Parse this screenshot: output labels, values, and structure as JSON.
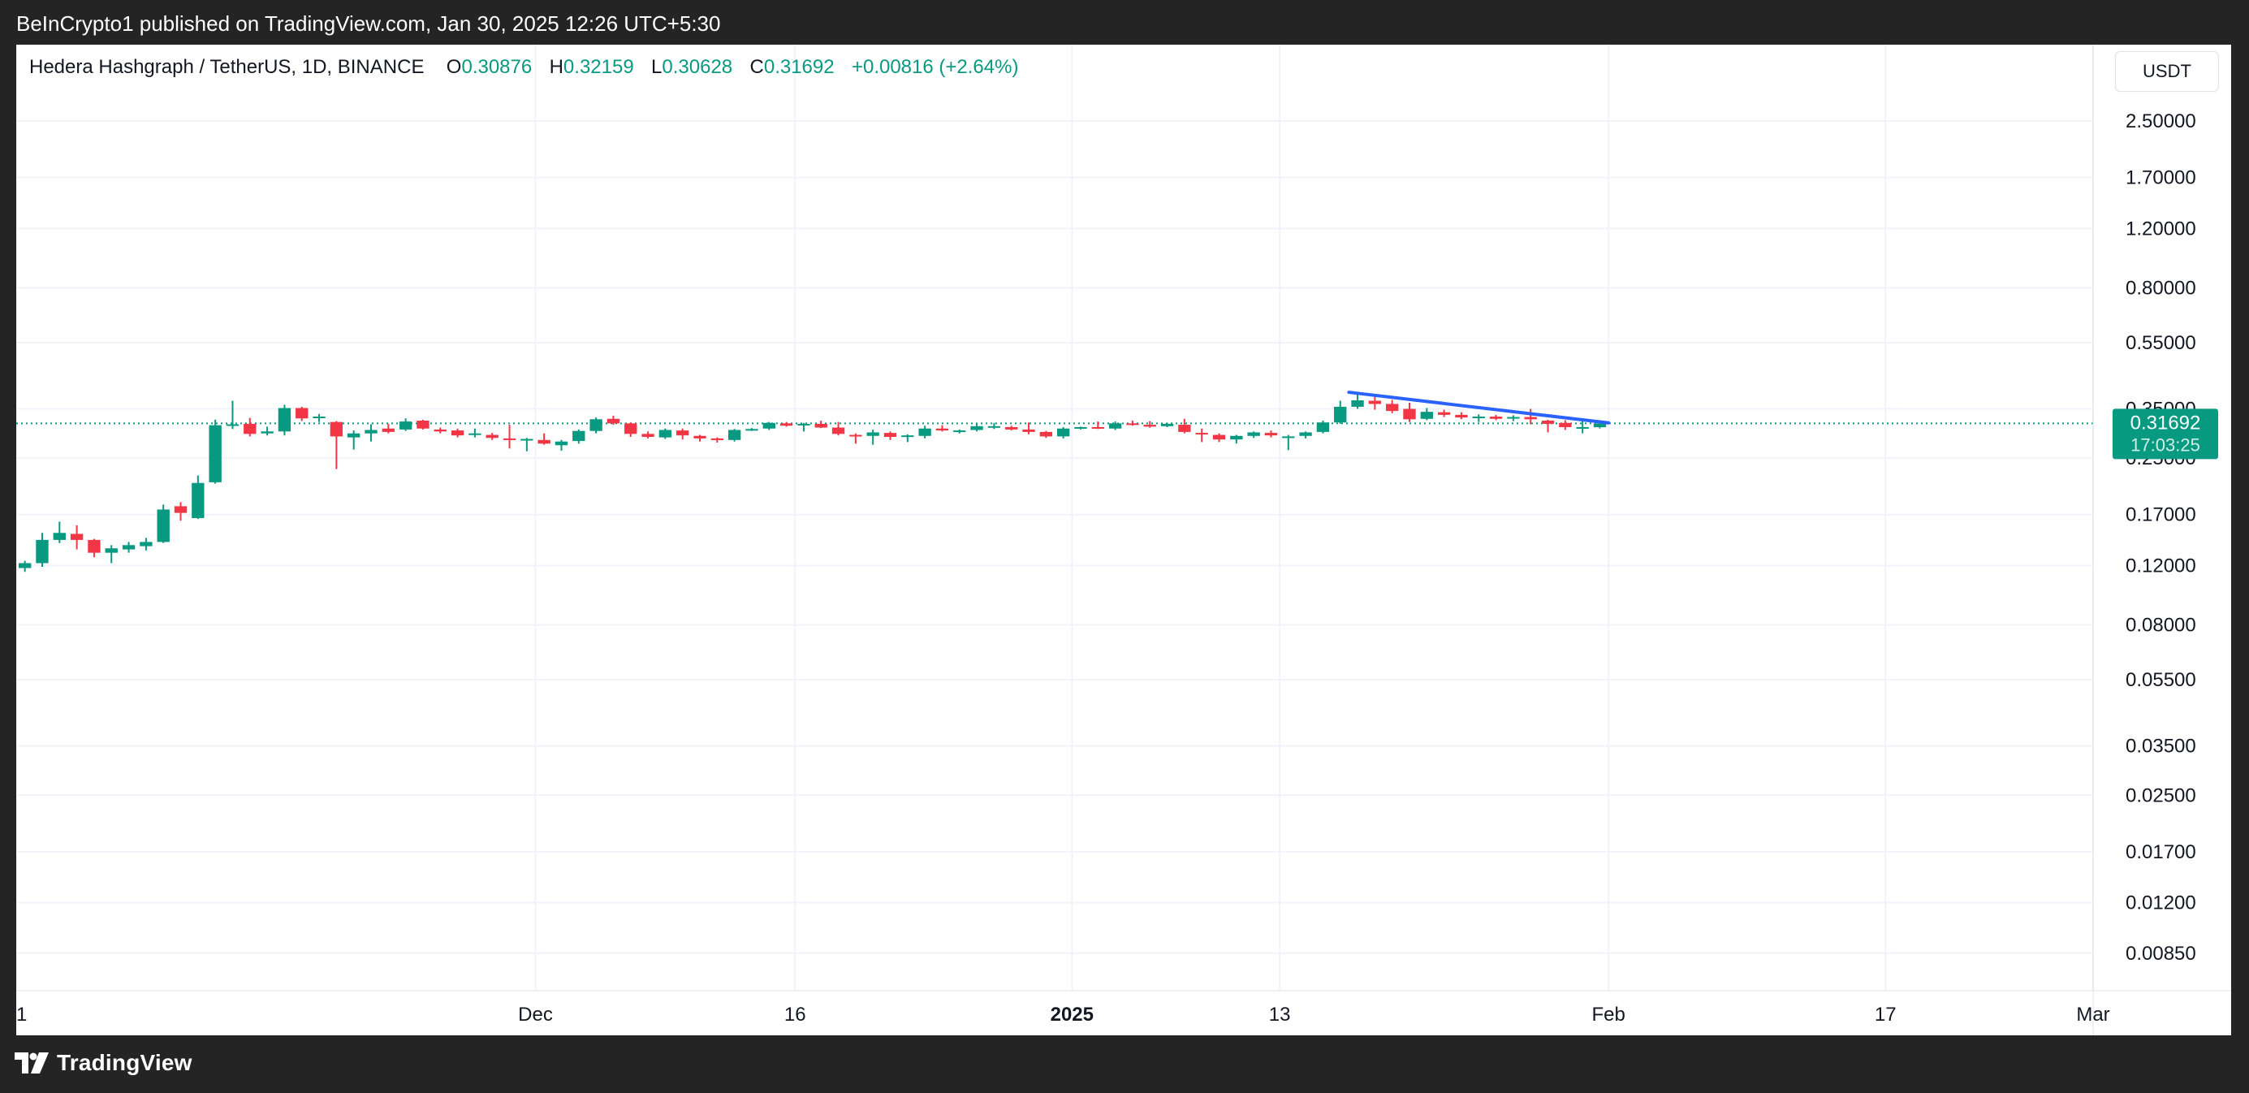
{
  "header": {
    "publish_line": "BeInCrypto1 published on TradingView.com, Jan 30, 2025 12:26 UTC+5:30"
  },
  "legend": {
    "symbol": "Hedera Hashgraph / TetherUS, 1D, BINANCE",
    "open_label": "O",
    "open": "0.30876",
    "high_label": "H",
    "high": "0.32159",
    "low_label": "L",
    "low": "0.30628",
    "close_label": "C",
    "close": "0.31692",
    "change": "+0.00816 (+2.64%)"
  },
  "price_axis": {
    "currency": "USDT",
    "current_price": "0.31692",
    "countdown": "17:03:25"
  },
  "footer": {
    "brand": "TradingView"
  },
  "colors": {
    "up": "#089981",
    "down": "#f23645",
    "trendline": "#2962ff",
    "grid": "#f0f3fa",
    "text": "#131722"
  },
  "icons": [
    "tradingview-logo-icon"
  ],
  "chart_data": {
    "type": "candlestick",
    "title": "Hedera Hashgraph / TetherUS, 1D, BINANCE",
    "y_scale": "log",
    "ylim": [
      0.0068,
      3.3
    ],
    "y_ticks": [
      "2.50000",
      "1.70000",
      "1.20000",
      "0.80000",
      "0.55000",
      "0.35000",
      "0.25000",
      "0.17000",
      "0.12000",
      "0.08000",
      "0.05500",
      "0.03500",
      "0.02500",
      "0.01700",
      "0.01200",
      "0.00850"
    ],
    "x_ticks": [
      {
        "date": "2024-11-01",
        "label": "1",
        "bold": false
      },
      {
        "date": "2024-12-01",
        "label": "Dec",
        "bold": false
      },
      {
        "date": "2024-12-16",
        "label": "16",
        "bold": false
      },
      {
        "date": "2025-01-01",
        "label": "2025",
        "bold": true
      },
      {
        "date": "2025-01-13",
        "label": "13",
        "bold": false
      },
      {
        "date": "2025-02-01",
        "label": "Feb",
        "bold": false
      },
      {
        "date": "2025-02-17",
        "label": "17",
        "bold": false
      },
      {
        "date": "2025-03-01",
        "label": "Mar",
        "bold": false
      }
    ],
    "x_range": [
      "2024-11-01",
      "2025-03-01"
    ],
    "candles": [
      {
        "date": "2024-11-01",
        "o": 0.118,
        "h": 0.124,
        "l": 0.115,
        "c": 0.122
      },
      {
        "date": "2024-11-02",
        "o": 0.122,
        "h": 0.15,
        "l": 0.119,
        "c": 0.143
      },
      {
        "date": "2024-11-03",
        "o": 0.143,
        "h": 0.162,
        "l": 0.14,
        "c": 0.15
      },
      {
        "date": "2024-11-04",
        "o": 0.149,
        "h": 0.158,
        "l": 0.134,
        "c": 0.143
      },
      {
        "date": "2024-11-05",
        "o": 0.143,
        "h": 0.144,
        "l": 0.127,
        "c": 0.131
      },
      {
        "date": "2024-11-06",
        "o": 0.131,
        "h": 0.138,
        "l": 0.122,
        "c": 0.135
      },
      {
        "date": "2024-11-07",
        "o": 0.134,
        "h": 0.141,
        "l": 0.131,
        "c": 0.138
      },
      {
        "date": "2024-11-08",
        "o": 0.137,
        "h": 0.145,
        "l": 0.133,
        "c": 0.141
      },
      {
        "date": "2024-11-09",
        "o": 0.141,
        "h": 0.182,
        "l": 0.14,
        "c": 0.176
      },
      {
        "date": "2024-11-10",
        "o": 0.18,
        "h": 0.185,
        "l": 0.163,
        "c": 0.172
      },
      {
        "date": "2024-11-11",
        "o": 0.166,
        "h": 0.222,
        "l": 0.165,
        "c": 0.211
      },
      {
        "date": "2024-11-12",
        "o": 0.212,
        "h": 0.325,
        "l": 0.21,
        "c": 0.313
      },
      {
        "date": "2024-11-13",
        "o": 0.313,
        "h": 0.37,
        "l": 0.305,
        "c": 0.315
      },
      {
        "date": "2024-11-14",
        "o": 0.316,
        "h": 0.329,
        "l": 0.29,
        "c": 0.295
      },
      {
        "date": "2024-11-15",
        "o": 0.296,
        "h": 0.31,
        "l": 0.292,
        "c": 0.3
      },
      {
        "date": "2024-11-16",
        "o": 0.3,
        "h": 0.36,
        "l": 0.292,
        "c": 0.352
      },
      {
        "date": "2024-11-17",
        "o": 0.352,
        "h": 0.355,
        "l": 0.322,
        "c": 0.328
      },
      {
        "date": "2024-11-18",
        "o": 0.329,
        "h": 0.338,
        "l": 0.32,
        "c": 0.332
      },
      {
        "date": "2024-11-19",
        "o": 0.32,
        "h": 0.322,
        "l": 0.232,
        "c": 0.29
      },
      {
        "date": "2024-11-20",
        "o": 0.288,
        "h": 0.302,
        "l": 0.265,
        "c": 0.296
      },
      {
        "date": "2024-11-21",
        "o": 0.296,
        "h": 0.315,
        "l": 0.28,
        "c": 0.303
      },
      {
        "date": "2024-11-22",
        "o": 0.306,
        "h": 0.316,
        "l": 0.296,
        "c": 0.299
      },
      {
        "date": "2024-11-23",
        "o": 0.304,
        "h": 0.328,
        "l": 0.301,
        "c": 0.321
      },
      {
        "date": "2024-11-24",
        "o": 0.323,
        "h": 0.325,
        "l": 0.304,
        "c": 0.306
      },
      {
        "date": "2024-11-25",
        "o": 0.304,
        "h": 0.308,
        "l": 0.296,
        "c": 0.3
      },
      {
        "date": "2024-11-26",
        "o": 0.302,
        "h": 0.306,
        "l": 0.288,
        "c": 0.292
      },
      {
        "date": "2024-11-27",
        "o": 0.293,
        "h": 0.306,
        "l": 0.288,
        "c": 0.296
      },
      {
        "date": "2024-11-28",
        "o": 0.293,
        "h": 0.297,
        "l": 0.283,
        "c": 0.287
      },
      {
        "date": "2024-11-29",
        "o": 0.286,
        "h": 0.314,
        "l": 0.267,
        "c": 0.283
      },
      {
        "date": "2024-11-30",
        "o": 0.283,
        "h": 0.287,
        "l": 0.262,
        "c": 0.285
      },
      {
        "date": "2024-12-01",
        "o": 0.283,
        "h": 0.296,
        "l": 0.274,
        "c": 0.276
      },
      {
        "date": "2024-12-02",
        "o": 0.273,
        "h": 0.283,
        "l": 0.263,
        "c": 0.28
      },
      {
        "date": "2024-12-03",
        "o": 0.281,
        "h": 0.304,
        "l": 0.276,
        "c": 0.301
      },
      {
        "date": "2024-12-04",
        "o": 0.301,
        "h": 0.33,
        "l": 0.296,
        "c": 0.326
      },
      {
        "date": "2024-12-05",
        "o": 0.327,
        "h": 0.334,
        "l": 0.314,
        "c": 0.317
      },
      {
        "date": "2024-12-06",
        "o": 0.317,
        "h": 0.319,
        "l": 0.289,
        "c": 0.295
      },
      {
        "date": "2024-12-07",
        "o": 0.295,
        "h": 0.3,
        "l": 0.286,
        "c": 0.289
      },
      {
        "date": "2024-12-08",
        "o": 0.288,
        "h": 0.306,
        "l": 0.285,
        "c": 0.303
      },
      {
        "date": "2024-12-09",
        "o": 0.302,
        "h": 0.306,
        "l": 0.284,
        "c": 0.292
      },
      {
        "date": "2024-12-10",
        "o": 0.291,
        "h": 0.293,
        "l": 0.28,
        "c": 0.286
      },
      {
        "date": "2024-12-11",
        "o": 0.286,
        "h": 0.288,
        "l": 0.278,
        "c": 0.283
      },
      {
        "date": "2024-12-12",
        "o": 0.283,
        "h": 0.305,
        "l": 0.28,
        "c": 0.303
      },
      {
        "date": "2024-12-13",
        "o": 0.305,
        "h": 0.307,
        "l": 0.301,
        "c": 0.305
      },
      {
        "date": "2024-12-14",
        "o": 0.306,
        "h": 0.32,
        "l": 0.303,
        "c": 0.318
      },
      {
        "date": "2024-12-15",
        "o": 0.317,
        "h": 0.32,
        "l": 0.31,
        "c": 0.312
      },
      {
        "date": "2024-12-16",
        "o": 0.313,
        "h": 0.318,
        "l": 0.3,
        "c": 0.316
      },
      {
        "date": "2024-12-17",
        "o": 0.316,
        "h": 0.323,
        "l": 0.307,
        "c": 0.308
      },
      {
        "date": "2024-12-18",
        "o": 0.308,
        "h": 0.32,
        "l": 0.292,
        "c": 0.295
      },
      {
        "date": "2024-12-19",
        "o": 0.293,
        "h": 0.296,
        "l": 0.276,
        "c": 0.291
      },
      {
        "date": "2024-12-20",
        "o": 0.291,
        "h": 0.304,
        "l": 0.274,
        "c": 0.298
      },
      {
        "date": "2024-12-21",
        "o": 0.297,
        "h": 0.3,
        "l": 0.283,
        "c": 0.289
      },
      {
        "date": "2024-12-22",
        "o": 0.289,
        "h": 0.294,
        "l": 0.279,
        "c": 0.292
      },
      {
        "date": "2024-12-23",
        "o": 0.291,
        "h": 0.312,
        "l": 0.286,
        "c": 0.306
      },
      {
        "date": "2024-12-24",
        "o": 0.306,
        "h": 0.313,
        "l": 0.3,
        "c": 0.302
      },
      {
        "date": "2024-12-25",
        "o": 0.3,
        "h": 0.304,
        "l": 0.296,
        "c": 0.302
      },
      {
        "date": "2024-12-26",
        "o": 0.303,
        "h": 0.318,
        "l": 0.3,
        "c": 0.311
      },
      {
        "date": "2024-12-27",
        "o": 0.311,
        "h": 0.318,
        "l": 0.305,
        "c": 0.311
      },
      {
        "date": "2024-12-28",
        "o": 0.309,
        "h": 0.312,
        "l": 0.302,
        "c": 0.304
      },
      {
        "date": "2024-12-29",
        "o": 0.304,
        "h": 0.319,
        "l": 0.294,
        "c": 0.299
      },
      {
        "date": "2024-12-30",
        "o": 0.299,
        "h": 0.301,
        "l": 0.287,
        "c": 0.29
      },
      {
        "date": "2024-12-31",
        "o": 0.29,
        "h": 0.309,
        "l": 0.286,
        "c": 0.306
      },
      {
        "date": "2025-01-01",
        "o": 0.306,
        "h": 0.31,
        "l": 0.304,
        "c": 0.309
      },
      {
        "date": "2025-01-02",
        "o": 0.309,
        "h": 0.321,
        "l": 0.305,
        "c": 0.307
      },
      {
        "date": "2025-01-03",
        "o": 0.306,
        "h": 0.321,
        "l": 0.303,
        "c": 0.317
      },
      {
        "date": "2025-01-04",
        "o": 0.317,
        "h": 0.323,
        "l": 0.312,
        "c": 0.314
      },
      {
        "date": "2025-01-05",
        "o": 0.314,
        "h": 0.322,
        "l": 0.308,
        "c": 0.31
      },
      {
        "date": "2025-01-06",
        "o": 0.311,
        "h": 0.318,
        "l": 0.309,
        "c": 0.316
      },
      {
        "date": "2025-01-07",
        "o": 0.314,
        "h": 0.327,
        "l": 0.296,
        "c": 0.299
      },
      {
        "date": "2025-01-08",
        "o": 0.297,
        "h": 0.306,
        "l": 0.279,
        "c": 0.295
      },
      {
        "date": "2025-01-09",
        "o": 0.293,
        "h": 0.296,
        "l": 0.279,
        "c": 0.284
      },
      {
        "date": "2025-01-10",
        "o": 0.284,
        "h": 0.293,
        "l": 0.276,
        "c": 0.291
      },
      {
        "date": "2025-01-11",
        "o": 0.291,
        "h": 0.3,
        "l": 0.287,
        "c": 0.298
      },
      {
        "date": "2025-01-12",
        "o": 0.297,
        "h": 0.302,
        "l": 0.288,
        "c": 0.292
      },
      {
        "date": "2025-01-13",
        "o": 0.29,
        "h": 0.293,
        "l": 0.264,
        "c": 0.29
      },
      {
        "date": "2025-01-14",
        "o": 0.291,
        "h": 0.3,
        "l": 0.286,
        "c": 0.298
      },
      {
        "date": "2025-01-15",
        "o": 0.299,
        "h": 0.323,
        "l": 0.296,
        "c": 0.319
      },
      {
        "date": "2025-01-16",
        "o": 0.319,
        "h": 0.37,
        "l": 0.316,
        "c": 0.355
      },
      {
        "date": "2025-01-17",
        "o": 0.355,
        "h": 0.39,
        "l": 0.35,
        "c": 0.371
      },
      {
        "date": "2025-01-18",
        "o": 0.37,
        "h": 0.38,
        "l": 0.348,
        "c": 0.362
      },
      {
        "date": "2025-01-19",
        "o": 0.362,
        "h": 0.372,
        "l": 0.34,
        "c": 0.345
      },
      {
        "date": "2025-01-20",
        "o": 0.35,
        "h": 0.365,
        "l": 0.32,
        "c": 0.326
      },
      {
        "date": "2025-01-21",
        "o": 0.327,
        "h": 0.352,
        "l": 0.324,
        "c": 0.343
      },
      {
        "date": "2025-01-22",
        "o": 0.342,
        "h": 0.348,
        "l": 0.331,
        "c": 0.336
      },
      {
        "date": "2025-01-23",
        "o": 0.336,
        "h": 0.342,
        "l": 0.326,
        "c": 0.33
      },
      {
        "date": "2025-01-24",
        "o": 0.331,
        "h": 0.337,
        "l": 0.32,
        "c": 0.332
      },
      {
        "date": "2025-01-25",
        "o": 0.332,
        "h": 0.336,
        "l": 0.324,
        "c": 0.327
      },
      {
        "date": "2025-01-26",
        "o": 0.328,
        "h": 0.335,
        "l": 0.322,
        "c": 0.331
      },
      {
        "date": "2025-01-27",
        "o": 0.331,
        "h": 0.35,
        "l": 0.315,
        "c": 0.326
      },
      {
        "date": "2025-01-28",
        "o": 0.323,
        "h": 0.325,
        "l": 0.298,
        "c": 0.316
      },
      {
        "date": "2025-01-29",
        "o": 0.318,
        "h": 0.324,
        "l": 0.303,
        "c": 0.309
      },
      {
        "date": "2025-01-30",
        "o": 0.309,
        "h": 0.322,
        "l": 0.296,
        "c": 0.309
      },
      {
        "date": "2025-01-31",
        "o": 0.30876,
        "h": 0.32159,
        "l": 0.30628,
        "c": 0.31692
      }
    ],
    "trendline": {
      "from": {
        "date": "2025-01-17",
        "y": 0.392
      },
      "to": {
        "date": "2025-02-01",
        "y": 0.318
      }
    },
    "current_price_line": 0.31692
  }
}
